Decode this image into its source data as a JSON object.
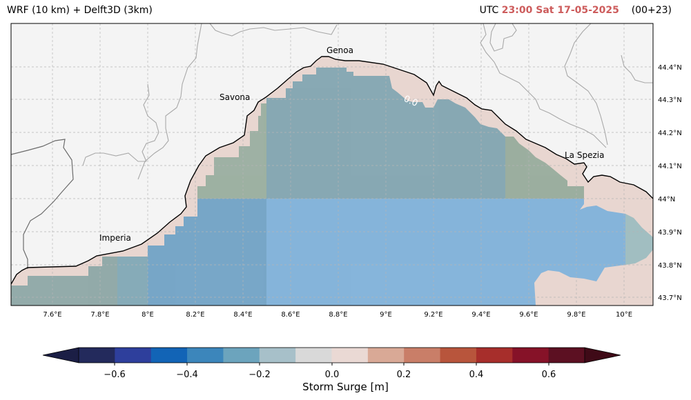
{
  "header": {
    "left_title": "WRF (10 km) + Delft3D (3km)",
    "right_prefix": "UTC",
    "right_time": "23:00 Sat 17-05-2025",
    "right_suffix": "(00+23)",
    "accent_color": "#cd5c5c"
  },
  "map": {
    "cities": [
      {
        "name": "Genoa",
        "lon": 8.93,
        "lat": 44.41
      },
      {
        "name": "Savona",
        "lon": 8.47,
        "lat": 44.31
      },
      {
        "name": "Imperia",
        "lon": 8.03,
        "lat": 43.89
      },
      {
        "name": "La Spezia",
        "lon": 9.83,
        "lat": 44.11
      }
    ],
    "lon_ticks": [
      "7.6°E",
      "7.8°E",
      "8°E",
      "8.2°E",
      "8.4°E",
      "8.6°E",
      "8.8°E",
      "9°E",
      "9.2°E",
      "9.4°E",
      "9.6°E",
      "9.8°E",
      "10°E"
    ],
    "lat_ticks": [
      "44.4°N",
      "44.3°N",
      "44.2°N",
      "44.1°N",
      "44°N",
      "43.9°N",
      "43.8°N",
      "43.7°N"
    ],
    "contour_label": "0.0",
    "land_color": "#f4f4f4",
    "coast_zone_color": "#e8d6d0"
  },
  "colorbar": {
    "label": "Storm Surge [m]",
    "tick_labels": [
      "−0.6",
      "−0.4",
      "−0.2",
      "0.0",
      "0.2",
      "0.4",
      "0.6"
    ],
    "colors": [
      "#1b1e45",
      "#232a5c",
      "#2e3f9c",
      "#1264b6",
      "#3c86bb",
      "#6ca4bd",
      "#a7c0c9",
      "#d9d9d9",
      "#ead9d4",
      "#d9a996",
      "#c97e68",
      "#b8553c",
      "#a72e2b",
      "#861228",
      "#5c1022",
      "#3f0a17"
    ]
  }
}
